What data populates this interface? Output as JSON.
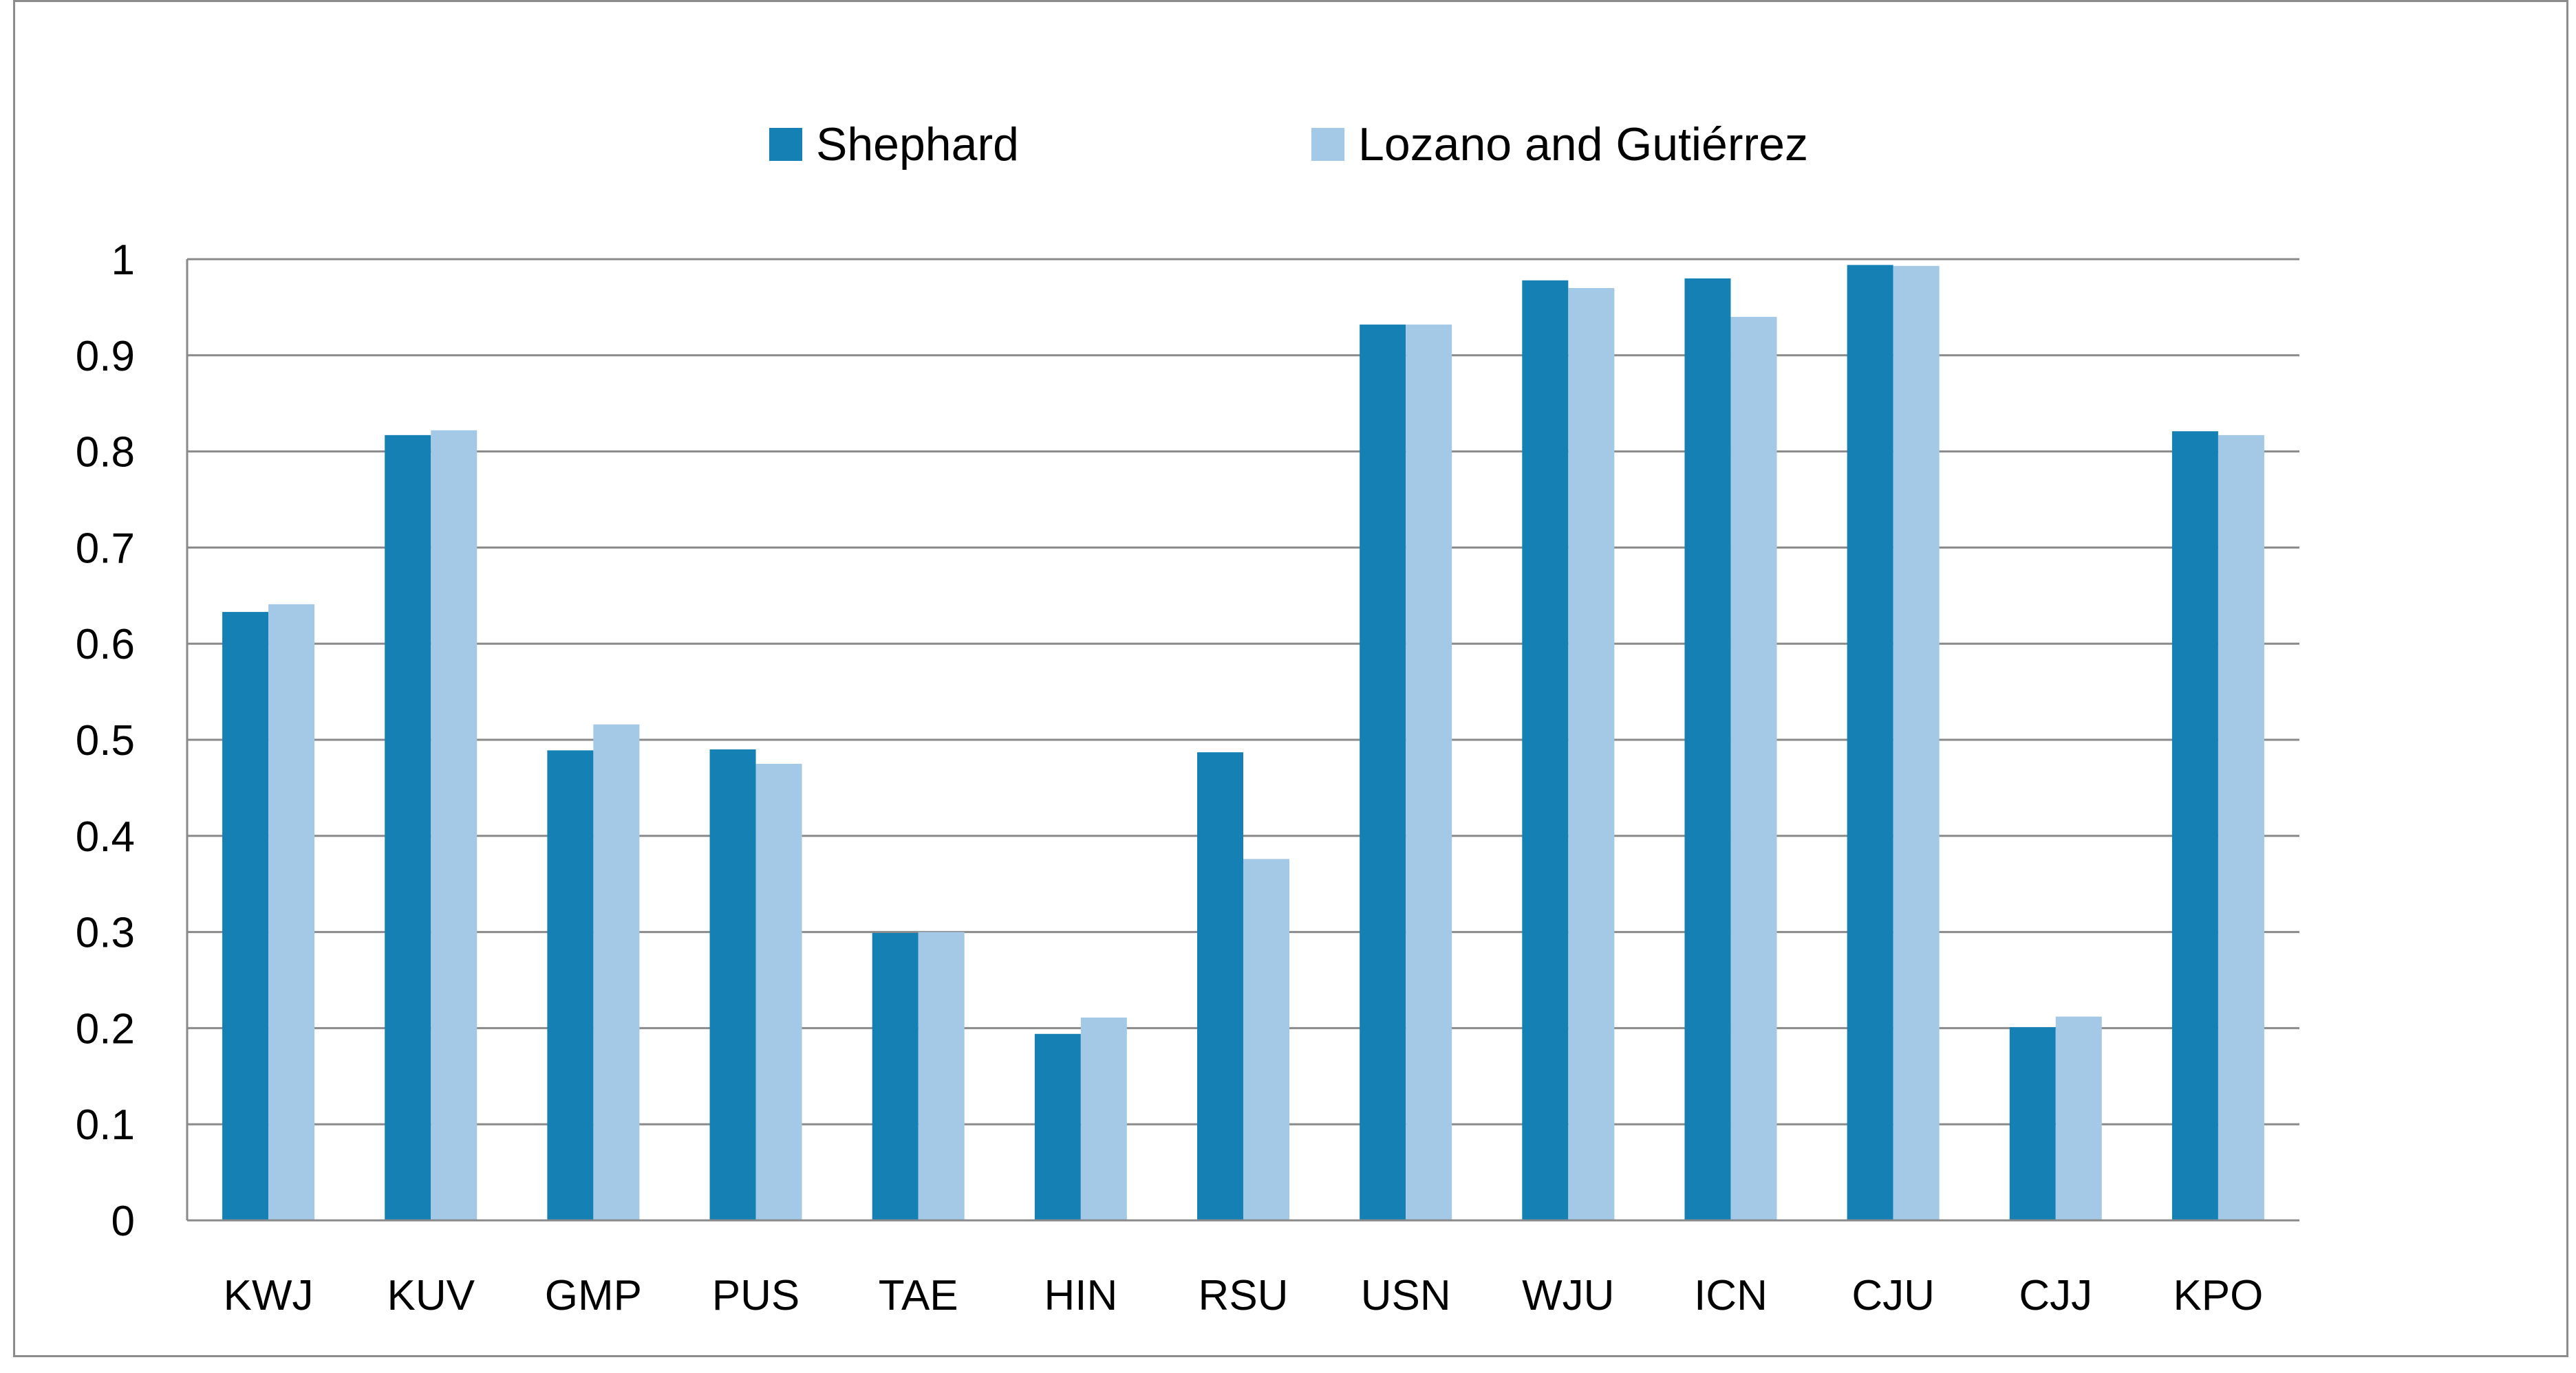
{
  "chart_data": {
    "type": "bar",
    "title": "",
    "xlabel": "",
    "ylabel": "",
    "ylim": [
      0,
      1
    ],
    "yticks": [
      "0",
      "0.1",
      "0.2",
      "0.3",
      "0.4",
      "0.5",
      "0.6",
      "0.7",
      "0.8",
      "0.9",
      "1"
    ],
    "grid": true,
    "legend_position": "top",
    "categories": [
      "KWJ",
      "KUV",
      "GMP",
      "PUS",
      "TAE",
      "HIN",
      "RSU",
      "USN",
      "WJU",
      "ICN",
      "CJU",
      "CJJ",
      "KPO"
    ],
    "series": [
      {
        "name": "Shephard",
        "color": "#1580b4",
        "values": [
          0.633,
          0.817,
          0.489,
          0.49,
          0.299,
          0.194,
          0.487,
          0.932,
          0.978,
          0.98,
          0.994,
          0.201,
          0.821
        ]
      },
      {
        "name": "Lozano and Gutiérrez",
        "color": "#a4c9e6",
        "values": [
          0.641,
          0.822,
          0.516,
          0.475,
          0.3,
          0.211,
          0.376,
          0.932,
          0.97,
          0.94,
          0.993,
          0.212,
          0.817
        ]
      }
    ]
  }
}
